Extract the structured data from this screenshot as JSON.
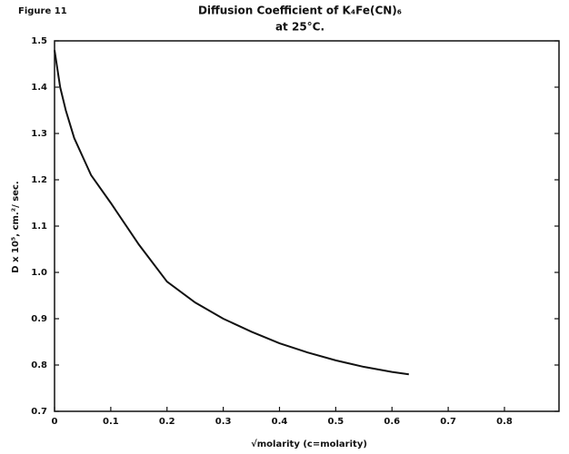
{
  "chart_data": {
    "type": "line",
    "figure_label": "Figure 11",
    "title": "Diffusion Coefficient of K₄Fe(CN)₆",
    "subtitle": "at 25°C.",
    "xlabel": "√molarity  (c=molarity)",
    "ylabel": "D x 10⁵, cm.²/ sec.",
    "x": [
      0,
      0.01,
      0.02,
      0.035,
      0.05,
      0.065,
      0.1,
      0.15,
      0.2,
      0.25,
      0.3,
      0.35,
      0.4,
      0.45,
      0.5,
      0.55,
      0.6,
      0.63
    ],
    "series": [
      {
        "color": "#111111",
        "values": [
          1.48,
          1.4,
          1.35,
          1.29,
          1.25,
          1.21,
          1.15,
          1.06,
          0.98,
          0.935,
          0.9,
          0.872,
          0.847,
          0.827,
          0.81,
          0.796,
          0.785,
          0.78
        ]
      }
    ],
    "xlim": [
      0,
      0.897
    ],
    "ylim": [
      0.7,
      1.5
    ],
    "xticks": [
      0,
      0.1,
      0.2,
      0.3,
      0.4,
      0.5,
      0.6,
      0.7,
      0.8
    ],
    "yticks": [
      0.7,
      0.8,
      0.9,
      {
        "value": 1,
        "label": "1.0"
      },
      1.1,
      1.2,
      1.3,
      1.4,
      1.5
    ],
    "grid": false
  }
}
